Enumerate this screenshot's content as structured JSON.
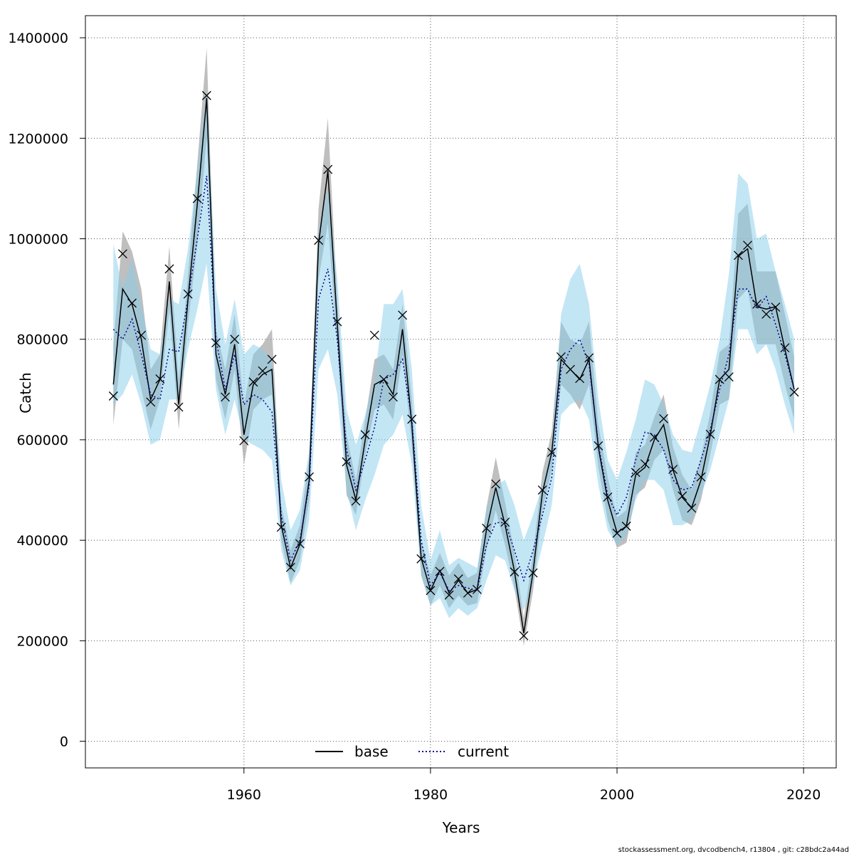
{
  "chart_data": {
    "type": "line",
    "xlabel": "Years",
    "ylabel": "Catch",
    "xlim": [
      1943,
      2023.5
    ],
    "ylim": [
      -53000,
      1444000
    ],
    "x_ticks": [
      1960,
      1980,
      2000,
      2020
    ],
    "y_ticks": [
      0,
      200000,
      400000,
      600000,
      800000,
      1000000,
      1200000,
      1400000
    ],
    "x_tick_labels": [
      "1960",
      "1980",
      "2000",
      "2020"
    ],
    "y_tick_labels": [
      "0",
      "200000",
      "400000",
      "600000",
      "800000",
      "1000000",
      "1200000",
      "1400000"
    ],
    "grid": true,
    "legend_position": "bottom-center",
    "footer": "stockassessment.org, dvcodbench4, r13804 , git: c28bdc2a44ad",
    "years": [
      1946,
      1947,
      1948,
      1949,
      1950,
      1951,
      1952,
      1953,
      1954,
      1955,
      1956,
      1957,
      1958,
      1959,
      1960,
      1961,
      1962,
      1963,
      1964,
      1965,
      1966,
      1967,
      1968,
      1969,
      1970,
      1971,
      1972,
      1973,
      1974,
      1975,
      1976,
      1977,
      1978,
      1979,
      1980,
      1981,
      1982,
      1983,
      1984,
      1985,
      1986,
      1987,
      1988,
      1989,
      1990,
      1991,
      1992,
      1993,
      1994,
      1995,
      1996,
      1997,
      1998,
      1999,
      2000,
      2001,
      2002,
      2003,
      2004,
      2005,
      2006,
      2007,
      2008,
      2009,
      2010,
      2011,
      2012,
      2013,
      2014,
      2015,
      2016,
      2017,
      2018,
      2019
    ],
    "observed": [
      687000,
      970000,
      872000,
      808000,
      675000,
      721000,
      940000,
      665000,
      890000,
      1080000,
      1285000,
      793000,
      685000,
      800000,
      598000,
      715000,
      737000,
      760000,
      426000,
      346000,
      393000,
      526000,
      997000,
      1138000,
      835000,
      556000,
      478000,
      610000,
      808000,
      720000,
      685000,
      848000,
      641000,
      363000,
      300000,
      338000,
      291000,
      323000,
      295000,
      302000,
      424000,
      512000,
      436000,
      337000,
      210000,
      335000,
      500000,
      575000,
      765000,
      740000,
      722000,
      763000,
      588000,
      486000,
      414000,
      428000,
      535000,
      552000,
      605000,
      642000,
      541000,
      488000,
      464000,
      526000,
      611000,
      720000,
      725000,
      967000,
      987000,
      870000,
      850000,
      864000,
      783000,
      695000
    ],
    "series": [
      {
        "name": "base",
        "values": [
          710000,
          900000,
          870000,
          800000,
          680000,
          720000,
          915000,
          670000,
          880000,
          1070000,
          1280000,
          770000,
          690000,
          790000,
          610000,
          710000,
          730000,
          740000,
          430000,
          345000,
          392000,
          520000,
          990000,
          1135000,
          830000,
          550000,
          480000,
          600000,
          710000,
          720000,
          690000,
          820000,
          630000,
          365000,
          300000,
          340000,
          295000,
          320000,
          295000,
          302000,
          420000,
          505000,
          430000,
          338000,
          215000,
          338000,
          495000,
          575000,
          760000,
          740000,
          720000,
          760000,
          585000,
          480000,
          415000,
          428000,
          530000,
          545000,
          600000,
          630000,
          540000,
          485000,
          465000,
          520000,
          610000,
          720000,
          740000,
          965000,
          980000,
          865000,
          860000,
          865000,
          780000,
          700000
        ],
        "lower": [
          630000,
          800000,
          780000,
          700000,
          620000,
          680000,
          860000,
          620000,
          830000,
          990000,
          1200000,
          720000,
          640000,
          740000,
          550000,
          660000,
          680000,
          690000,
          400000,
          315000,
          360000,
          480000,
          920000,
          1030000,
          790000,
          490000,
          450000,
          570000,
          660000,
          670000,
          640000,
          770000,
          590000,
          330000,
          270000,
          310000,
          265000,
          290000,
          270000,
          275000,
          380000,
          460000,
          390000,
          305000,
          190000,
          300000,
          460000,
          540000,
          710000,
          690000,
          660000,
          710000,
          545000,
          440000,
          385000,
          395000,
          490000,
          505000,
          560000,
          580000,
          500000,
          440000,
          430000,
          480000,
          570000,
          670000,
          680000,
          880000,
          900000,
          790000,
          790000,
          790000,
          710000,
          640000
        ],
        "upper": [
          790000,
          1015000,
          975000,
          900000,
          740000,
          770000,
          985000,
          720000,
          930000,
          1150000,
          1380000,
          820000,
          740000,
          850000,
          670000,
          770000,
          790000,
          820000,
          470000,
          380000,
          430000,
          565000,
          1060000,
          1240000,
          880000,
          610000,
          520000,
          640000,
          760000,
          770000,
          740000,
          870000,
          680000,
          400000,
          330000,
          375000,
          330000,
          355000,
          325000,
          335000,
          465000,
          565000,
          475000,
          375000,
          245000,
          375000,
          535000,
          615000,
          835000,
          800000,
          790000,
          835000,
          630000,
          525000,
          445000,
          460000,
          575000,
          590000,
          645000,
          690000,
          585000,
          530000,
          500000,
          565000,
          655000,
          775000,
          790000,
          1050000,
          1070000,
          935000,
          935000,
          935000,
          850000,
          765000
        ]
      },
      {
        "name": "current",
        "values": [
          820000,
          800000,
          840000,
          770000,
          690000,
          680000,
          780000,
          775000,
          880000,
          1000000,
          1125000,
          800000,
          700000,
          770000,
          670000,
          690000,
          680000,
          655000,
          450000,
          360000,
          400000,
          510000,
          880000,
          940000,
          800000,
          580000,
          500000,
          560000,
          625000,
          720000,
          730000,
          760000,
          640000,
          400000,
          310000,
          335000,
          300000,
          310000,
          305000,
          300000,
          390000,
          435000,
          435000,
          380000,
          320000,
          380000,
          450000,
          525000,
          740000,
          780000,
          800000,
          750000,
          590000,
          490000,
          450000,
          485000,
          560000,
          615000,
          610000,
          580000,
          520000,
          500000,
          505000,
          560000,
          620000,
          700000,
          770000,
          900000,
          900000,
          860000,
          885000,
          830000,
          770000,
          700000
        ],
        "lower": [
          670000,
          690000,
          730000,
          670000,
          590000,
          600000,
          680000,
          680000,
          780000,
          860000,
          950000,
          700000,
          610000,
          680000,
          600000,
          590000,
          580000,
          560000,
          380000,
          310000,
          340000,
          440000,
          740000,
          780000,
          690000,
          500000,
          420000,
          480000,
          530000,
          590000,
          610000,
          650000,
          550000,
          330000,
          270000,
          285000,
          245000,
          265000,
          250000,
          265000,
          320000,
          370000,
          360000,
          300000,
          260000,
          315000,
          390000,
          470000,
          650000,
          670000,
          680000,
          640000,
          510000,
          420000,
          390000,
          410000,
          480000,
          520000,
          520000,
          500000,
          430000,
          430000,
          440000,
          490000,
          540000,
          610000,
          680000,
          820000,
          820000,
          770000,
          790000,
          740000,
          670000,
          610000
        ],
        "upper": [
          990000,
          900000,
          960000,
          870000,
          780000,
          770000,
          880000,
          870000,
          980000,
          1140000,
          1300000,
          900000,
          790000,
          880000,
          770000,
          790000,
          780000,
          760000,
          520000,
          420000,
          460000,
          580000,
          1010000,
          1100000,
          920000,
          660000,
          590000,
          650000,
          720000,
          870000,
          870000,
          900000,
          740000,
          470000,
          360000,
          420000,
          350000,
          365000,
          355000,
          345000,
          460000,
          510000,
          520000,
          470000,
          400000,
          450000,
          510000,
          590000,
          850000,
          920000,
          950000,
          870000,
          680000,
          560000,
          520000,
          575000,
          640000,
          720000,
          710000,
          670000,
          610000,
          580000,
          575000,
          640000,
          710000,
          800000,
          930000,
          1130000,
          1110000,
          1000000,
          1010000,
          935000,
          870000,
          800000
        ]
      }
    ]
  },
  "colors": {
    "base_band": "#a9a9a9",
    "current_band": "#87ceeb",
    "base_line": "#000000",
    "current_line": "#00008b",
    "grid": "#555555"
  }
}
